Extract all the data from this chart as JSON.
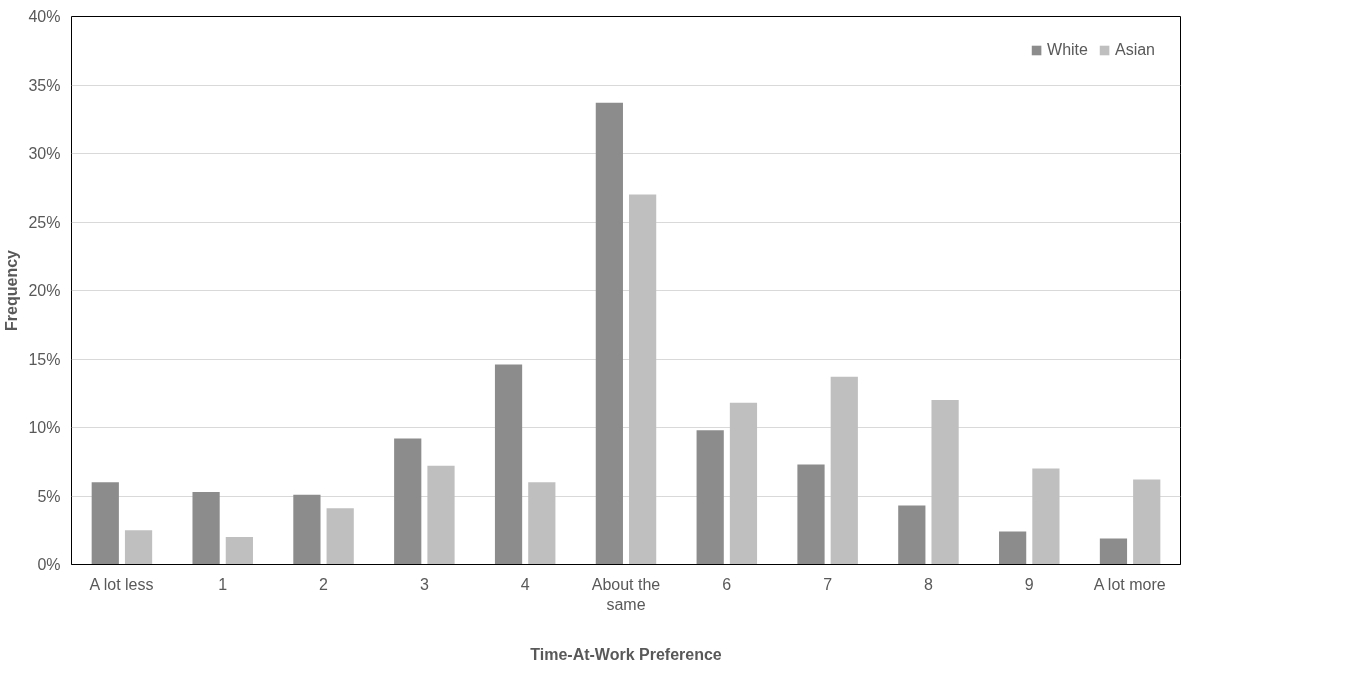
{
  "chart_data": {
    "type": "bar",
    "xlabel": "Time-At-Work Preference",
    "ylabel": "Frequency",
    "categories": [
      "A lot less",
      "1",
      "2",
      "3",
      "4",
      "About the same",
      "6",
      "7",
      "8",
      "9",
      "A lot more"
    ],
    "series": [
      {
        "name": "White",
        "color": "#8c8c8c",
        "values": [
          6.0,
          5.3,
          5.1,
          9.2,
          14.6,
          33.7,
          9.8,
          7.3,
          4.3,
          2.4,
          1.9
        ]
      },
      {
        "name": "Asian",
        "color": "#bfbfbf",
        "values": [
          2.5,
          2.0,
          4.1,
          7.2,
          6.0,
          27.0,
          11.8,
          13.7,
          12.0,
          7.0,
          6.2
        ]
      }
    ],
    "ylim": [
      0,
      40
    ],
    "yticks": [
      {
        "value": 0,
        "label": "0%"
      },
      {
        "value": 5,
        "label": "5%"
      },
      {
        "value": 10,
        "label": "10%"
      },
      {
        "value": 15,
        "label": "15%"
      },
      {
        "value": 20,
        "label": "20%"
      },
      {
        "value": 25,
        "label": "25%"
      },
      {
        "value": 30,
        "label": "30%"
      },
      {
        "value": 35,
        "label": "35%"
      },
      {
        "value": 40,
        "label": "40%"
      }
    ],
    "grid": "y",
    "legend": "top right"
  }
}
